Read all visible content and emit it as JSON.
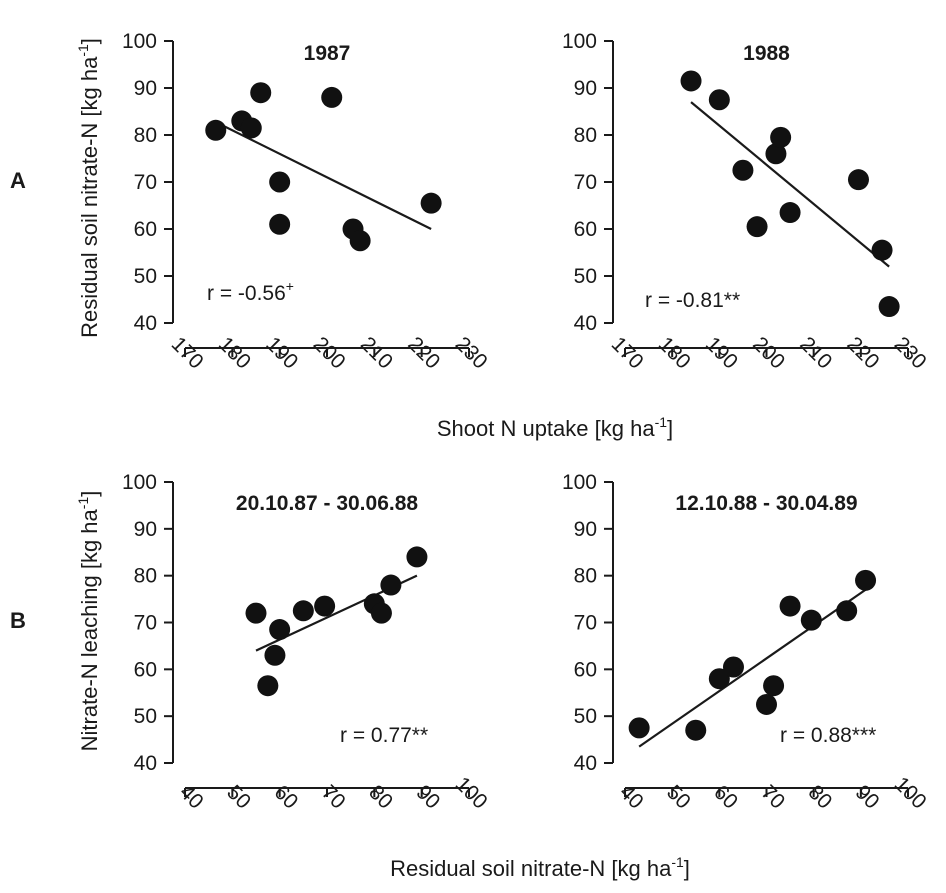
{
  "figure": {
    "row_labels": [
      "A",
      "B"
    ],
    "shared_xlabels": {
      "top": {
        "text": "Shoot N uptake [kg ha",
        "sup": "-1",
        "close": "]"
      },
      "bottom": {
        "text": "Residual soil nitrate-N [kg ha",
        "sup": "-1",
        "close": "]"
      }
    },
    "ylabels": {
      "top": {
        "text": "Residual soil nitrate-N [kg ha",
        "sup": "-1",
        "close": "]"
      },
      "bottom": {
        "text": "Nitrate-N leaching [kg ha",
        "sup": "-1",
        "close": "]"
      }
    }
  },
  "chart_data": [
    {
      "type": "scatter",
      "title": "1987",
      "row": "A",
      "xlim": [
        170,
        230
      ],
      "ylim": [
        40,
        100
      ],
      "xticks": [
        170,
        180,
        190,
        200,
        210,
        220,
        230
      ],
      "yticks": [
        40,
        50,
        60,
        70,
        80,
        90,
        100
      ],
      "points": [
        [
          176.5,
          81
        ],
        [
          182,
          83
        ],
        [
          184,
          81.5
        ],
        [
          186,
          89
        ],
        [
          190,
          70
        ],
        [
          190,
          61
        ],
        [
          201,
          88
        ],
        [
          205.5,
          60
        ],
        [
          207,
          57.5
        ],
        [
          222,
          65.5
        ]
      ],
      "regression": {
        "x": [
          178,
          222
        ],
        "y": [
          82,
          60
        ]
      },
      "annotation": {
        "text": "r  = -0.56",
        "sup": "+"
      }
    },
    {
      "type": "scatter",
      "title": "1988",
      "row": "A",
      "xlim": [
        170,
        230
      ],
      "ylim": [
        40,
        100
      ],
      "xticks": [
        170,
        180,
        190,
        200,
        210,
        220,
        230
      ],
      "yticks": [
        40,
        50,
        60,
        70,
        80,
        90,
        100
      ],
      "points": [
        [
          184,
          91.5
        ],
        [
          190,
          87.5
        ],
        [
          195,
          72.5
        ],
        [
          198,
          60.5
        ],
        [
          202,
          76
        ],
        [
          203,
          79.5
        ],
        [
          205,
          63.5
        ],
        [
          219.5,
          70.5
        ],
        [
          224.5,
          55.5
        ],
        [
          226,
          43.5
        ]
      ],
      "regression": {
        "x": [
          184,
          226
        ],
        "y": [
          87,
          52
        ]
      },
      "annotation": {
        "text": "r  = -0.81**",
        "sup": ""
      }
    },
    {
      "type": "scatter",
      "title": "20.10.87 - 30.06.88",
      "row": "B",
      "xlim": [
        40,
        100
      ],
      "ylim": [
        40,
        100
      ],
      "xticks": [
        40,
        50,
        60,
        70,
        80,
        90,
        100
      ],
      "yticks": [
        40,
        50,
        60,
        70,
        80,
        90,
        100
      ],
      "points": [
        [
          55,
          72
        ],
        [
          57.5,
          56.5
        ],
        [
          59,
          63
        ],
        [
          60,
          68.5
        ],
        [
          65,
          72.5
        ],
        [
          69.5,
          73.5
        ],
        [
          80,
          74
        ],
        [
          81.5,
          72
        ],
        [
          83.5,
          78
        ],
        [
          89,
          84
        ]
      ],
      "regression": {
        "x": [
          55,
          89
        ],
        "y": [
          64,
          80
        ]
      },
      "annotation": {
        "text": "r  = 0.77**",
        "sup": ""
      }
    },
    {
      "type": "scatter",
      "title": "12.10.88 - 30.04.89",
      "row": "B",
      "xlim": [
        40,
        100
      ],
      "ylim": [
        40,
        100
      ],
      "xticks": [
        40,
        50,
        60,
        70,
        80,
        90,
        100
      ],
      "yticks": [
        40,
        50,
        60,
        70,
        80,
        90,
        100
      ],
      "points": [
        [
          43,
          47.5
        ],
        [
          55,
          47
        ],
        [
          60,
          58
        ],
        [
          63,
          60.5
        ],
        [
          70,
          52.5
        ],
        [
          71.5,
          56.5
        ],
        [
          75,
          73.5
        ],
        [
          79.5,
          70.5
        ],
        [
          87,
          72.5
        ],
        [
          91,
          79
        ]
      ],
      "regression": {
        "x": [
          43,
          91
        ],
        "y": [
          43.5,
          77
        ]
      },
      "annotation": {
        "text": "r  = 0.88***",
        "sup": ""
      }
    }
  ]
}
